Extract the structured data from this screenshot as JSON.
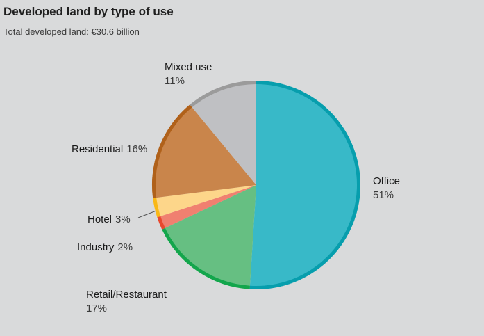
{
  "chart_data": {
    "type": "pie",
    "title": "Developed land by type of use",
    "subtitle": "Total developed land: €30.6 billion",
    "slices": [
      {
        "name": "Office",
        "value": 51,
        "label": "51%",
        "fill": "#38b9c8",
        "rim": "#079ead"
      },
      {
        "name": "Retail/Restaurant",
        "value": 17,
        "label": "17%",
        "fill": "#66bf82",
        "rim": "#13a64c"
      },
      {
        "name": "Industry",
        "value": 2,
        "label": "2%",
        "fill": "#f08070",
        "rim": "#e8482e"
      },
      {
        "name": "Hotel",
        "value": 3,
        "label": "3%",
        "fill": "#fdd68a",
        "rim": "#f9b817"
      },
      {
        "name": "Residential",
        "value": 16,
        "label": "16%",
        "fill": "#c9854b",
        "rim": "#b0611a"
      },
      {
        "name": "Mixed use",
        "value": 11,
        "label": "11%",
        "fill": "#bfc0c3",
        "rim": "#9b9b9b"
      }
    ]
  }
}
